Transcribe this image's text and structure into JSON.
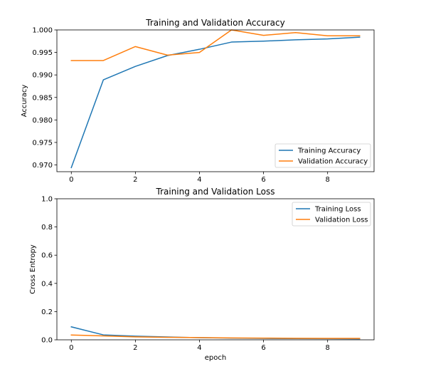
{
  "chart_data": [
    {
      "type": "line",
      "title": "Training and Validation Accuracy",
      "xlabel": "",
      "ylabel": "Accuracy",
      "xlim": [
        -0.45,
        9.45
      ],
      "ylim": [
        0.9685,
        1.0
      ],
      "x": [
        0,
        1,
        2,
        3,
        4,
        5,
        6,
        7,
        8,
        9
      ],
      "xticks": [
        0,
        2,
        4,
        6,
        8
      ],
      "yticks": [
        0.97,
        0.975,
        0.98,
        0.985,
        0.99,
        0.995,
        1.0
      ],
      "ytick_labels": [
        "0.970",
        "0.975",
        "0.980",
        "0.985",
        "0.990",
        "0.995",
        "1.000"
      ],
      "legend_position": "lower right",
      "series": [
        {
          "name": "Training Accuracy",
          "color": "#1f77b4",
          "values": [
            0.9694,
            0.9889,
            0.9919,
            0.9943,
            0.9957,
            0.9973,
            0.9975,
            0.9978,
            0.998,
            0.9984
          ]
        },
        {
          "name": "Validation Accuracy",
          "color": "#ff7f0e",
          "values": [
            0.9932,
            0.9932,
            0.9963,
            0.9944,
            0.995,
            1.0,
            0.9988,
            0.9994,
            0.9987,
            0.9987
          ]
        }
      ]
    },
    {
      "type": "line",
      "title": "Training and Validation Loss",
      "xlabel": "epoch",
      "ylabel": "Cross Entropy",
      "xlim": [
        -0.45,
        9.45
      ],
      "ylim": [
        0.0,
        1.0
      ],
      "x": [
        0,
        1,
        2,
        3,
        4,
        5,
        6,
        7,
        8,
        9
      ],
      "xticks": [
        0,
        2,
        4,
        6,
        8
      ],
      "yticks": [
        0.0,
        0.2,
        0.4,
        0.6,
        0.8,
        1.0
      ],
      "ytick_labels": [
        "0.0",
        "0.2",
        "0.4",
        "0.6",
        "0.8",
        "1.0"
      ],
      "legend_position": "upper right",
      "series": [
        {
          "name": "Training Loss",
          "color": "#1f77b4",
          "values": [
            0.092,
            0.035,
            0.026,
            0.02,
            0.015,
            0.012,
            0.01,
            0.009,
            0.008,
            0.007
          ]
        },
        {
          "name": "Validation Loss",
          "color": "#ff7f0e",
          "values": [
            0.034,
            0.028,
            0.021,
            0.018,
            0.016,
            0.013,
            0.012,
            0.011,
            0.01,
            0.01
          ]
        }
      ]
    }
  ]
}
